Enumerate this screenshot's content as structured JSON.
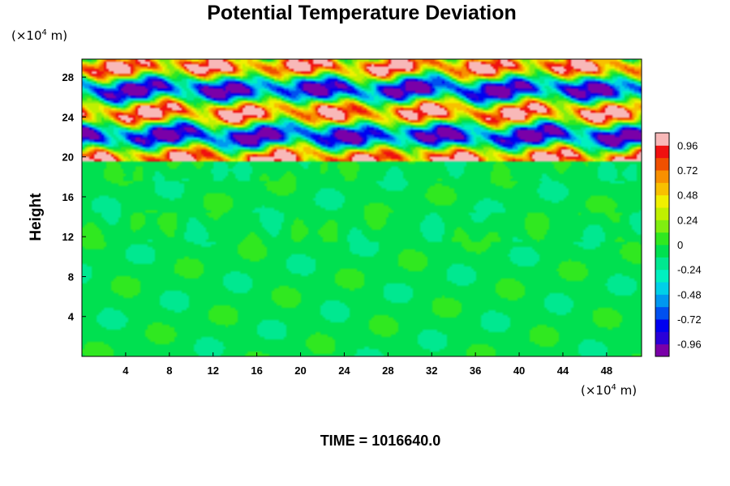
{
  "chart_data": {
    "type": "heatmap",
    "title": "Potential Temperature Deviation",
    "xunit_prefix": "(×10",
    "xunit_exp": "4",
    "xunit_suffix": " m)",
    "yunit_prefix": "(×10",
    "yunit_exp": "4",
    "yunit_suffix": " m)",
    "ylabel": "Height",
    "xlim": [
      0,
      51.2
    ],
    "ylim": [
      0,
      29.8
    ],
    "x_ticks": [
      4,
      8,
      12,
      16,
      20,
      24,
      28,
      32,
      36,
      40,
      44,
      48
    ],
    "y_ticks": [
      4,
      8,
      12,
      16,
      20,
      24,
      28
    ],
    "colorbar": {
      "range": [
        -1.08,
        1.08
      ],
      "ticks": [
        -0.96,
        -0.72,
        -0.48,
        -0.24,
        0,
        0.24,
        0.48,
        0.72,
        0.96
      ],
      "tick_labels": [
        "-0.96",
        "-0.72",
        "-0.48",
        "-0.24",
        "0",
        "0.24",
        "0.48",
        "0.72",
        "0.96"
      ],
      "levels": 18
    },
    "time_label": "TIME = 1016640.0"
  }
}
